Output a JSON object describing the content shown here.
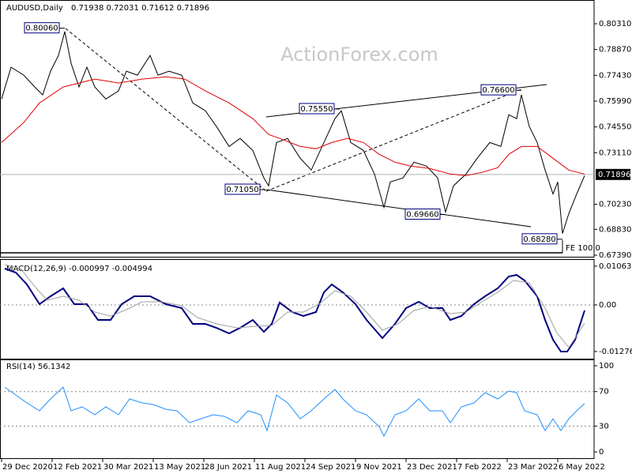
{
  "chart_data": [
    {
      "type": "line",
      "title": "AUDUSD,Daily",
      "subtitle": "0.71938 0.72031 0.71612 0.71896",
      "watermark": "ActionForex.com",
      "fe_label": "FE 100.0",
      "xlim": [
        -1,
        375
      ],
      "ylim": [
        0.6739,
        0.81635
      ],
      "yticks": [
        {
          "value": 0.8031,
          "label": "0.80310"
        },
        {
          "value": 0.7887,
          "label": "0.78870"
        },
        {
          "value": 0.7743,
          "label": "0.77430"
        },
        {
          "value": 0.7599,
          "label": "0.75990"
        },
        {
          "value": 0.7455,
          "label": "0.74550"
        },
        {
          "value": 0.7311,
          "label": "0.73110"
        },
        {
          "value": 0.7023,
          "label": "0.70230"
        },
        {
          "value": 0.6883,
          "label": "0.68830"
        },
        {
          "value": 0.6739,
          "label": "0.67390"
        }
      ],
      "last_price": {
        "value": 0.71896,
        "label": "0.71896"
      },
      "annotations": [
        {
          "x": 40,
          "value": 0.8006,
          "label": "0.80060"
        },
        {
          "x": 214,
          "value": 0.7555,
          "label": "0.75550"
        },
        {
          "x": 329,
          "value": 0.766,
          "label": "0.76600"
        },
        {
          "x": 167,
          "value": 0.7105,
          "label": "0.71050"
        },
        {
          "x": 281,
          "value": 0.6966,
          "label": "0.69660"
        },
        {
          "x": 355,
          "value": 0.6828,
          "label": "0.68280"
        }
      ],
      "series": [
        {
          "color": "#000000",
          "x": [
            0,
            6,
            14,
            21,
            26,
            31,
            36,
            40,
            44,
            49,
            54,
            59,
            66,
            74,
            79,
            86,
            94,
            99,
            106,
            114,
            121,
            129,
            136,
            144,
            151,
            159,
            166,
            169,
            174,
            181,
            189,
            196,
            204,
            211,
            215,
            221,
            229,
            236,
            242,
            246,
            254,
            261,
            269,
            276,
            281,
            286,
            294,
            301,
            309,
            316,
            321,
            326,
            329,
            334,
            339,
            344,
            349,
            352,
            355,
            359,
            364,
            369
          ],
          "values": [
            0.7611,
            0.7788,
            0.7744,
            0.7678,
            0.7634,
            0.7766,
            0.7854,
            0.7987,
            0.781,
            0.7678,
            0.7788,
            0.7678,
            0.7611,
            0.7656,
            0.7766,
            0.7744,
            0.7854,
            0.7744,
            0.7766,
            0.7744,
            0.7589,
            0.7545,
            0.7457,
            0.7346,
            0.7391,
            0.7324,
            0.717,
            0.7126,
            0.7368,
            0.7391,
            0.728,
            0.7214,
            0.7368,
            0.7501,
            0.7545,
            0.7368,
            0.7324,
            0.7192,
            0.7006,
            0.7148,
            0.717,
            0.7258,
            0.7236,
            0.717,
            0.698,
            0.7126,
            0.7192,
            0.728,
            0.7368,
            0.7346,
            0.7523,
            0.7501,
            0.7634,
            0.7457,
            0.7368,
            0.7214,
            0.7081,
            0.7148,
            0.686,
            0.6971,
            0.7081,
            0.7183
          ]
        },
        {
          "color": "#e00000",
          "x": [
            0,
            14,
            24,
            39,
            49,
            59,
            74,
            89,
            104,
            116,
            129,
            144,
            159,
            169,
            176,
            189,
            199,
            209,
            219,
            229,
            239,
            249,
            259,
            271,
            284,
            294,
            304,
            314,
            321,
            329,
            339,
            349,
            359,
            369
          ],
          "values": [
            0.7368,
            0.7479,
            0.7589,
            0.7678,
            0.77,
            0.7722,
            0.77,
            0.7722,
            0.7735,
            0.7722,
            0.7656,
            0.7589,
            0.7501,
            0.7413,
            0.7391,
            0.7346,
            0.7333,
            0.7368,
            0.7391,
            0.7368,
            0.7302,
            0.7258,
            0.7236,
            0.7223,
            0.7192,
            0.7183,
            0.7201,
            0.7227,
            0.7302,
            0.7346,
            0.7346,
            0.728,
            0.7214,
            0.7192
          ]
        }
      ]
    },
    {
      "type": "line",
      "title": "MACD(12,26,9) -0.000997 -0.004994",
      "xlim": [
        -1,
        375
      ],
      "ylim": [
        -0.0143,
        0.01213
      ],
      "yticks": [
        0.010631,
        {
          "value": 0,
          "label": "0.00"
        },
        -0.012767
      ],
      "levels": [
        0
      ],
      "series": [
        {
          "color": "#000080",
          "x": [
            2,
            9,
            16,
            24,
            31,
            39,
            46,
            54,
            61,
            69,
            76,
            84,
            94,
            104,
            114,
            121,
            129,
            136,
            144,
            151,
            159,
            166,
            171,
            176,
            184,
            191,
            199,
            204,
            209,
            216,
            224,
            231,
            241,
            249,
            256,
            264,
            271,
            279,
            284,
            291,
            299,
            306,
            314,
            321,
            326,
            331,
            339,
            344,
            349,
            354,
            358,
            363,
            369
          ],
          "values": [
            0.00997,
            0.00888,
            0.00563,
            0.00022,
            0.00238,
            0.00455,
            0.00022,
            0.00022,
            -0.00412,
            -0.00412,
            0.00022,
            0.00238,
            0.00238,
            0.00022,
            -0.00087,
            -0.0052,
            -0.0052,
            -0.00628,
            -0.0078,
            -0.00628,
            -0.00412,
            -0.00737,
            -0.0052,
            0.00065,
            -0.00195,
            -0.00303,
            -0.00195,
            0.00347,
            0.00563,
            0.00347,
            0.00022,
            -0.00412,
            -0.0091,
            -0.0052,
            -0.00087,
            0.00087,
            -0.00087,
            -0.00087,
            -0.00412,
            -0.00303,
            0.00022,
            0.00238,
            0.00455,
            0.0078,
            0.00823,
            0.00672,
            0.00238,
            -0.00412,
            -0.00953,
            -0.01278,
            -0.01278,
            -0.00953,
            -0.00152
          ]
        },
        {
          "color": "#a0a0a0",
          "x": [
            2,
            12,
            22,
            29,
            39,
            49,
            59,
            69,
            79,
            89,
            101,
            114,
            124,
            136,
            149,
            161,
            171,
            181,
            191,
            201,
            211,
            221,
            231,
            241,
            251,
            261,
            271,
            284,
            294,
            304,
            314,
            324,
            334,
            344,
            351,
            359,
            369
          ],
          "values": [
            0.01105,
            0.00997,
            0.00455,
            0.0013,
            0.00238,
            0.0013,
            -0.00195,
            -0.00303,
            -0.0013,
            0.00087,
            0.00087,
            -0.00022,
            -0.00347,
            -0.0052,
            -0.00628,
            -0.00585,
            -0.00563,
            -0.00195,
            -0.00195,
            0.00022,
            0.0039,
            0.00238,
            -0.00195,
            -0.00693,
            -0.0052,
            -0.00152,
            -0.00043,
            -0.00238,
            -0.00195,
            0.00087,
            0.00347,
            0.00672,
            0.00607,
            -0.00087,
            -0.00737,
            -0.0117,
            -0.005
          ]
        }
      ]
    },
    {
      "type": "line",
      "title": "RSI(14) 56.1342",
      "xlim": [
        -1,
        375
      ],
      "ylim": [
        -7.3,
        106.4
      ],
      "yticks": [
        0,
        30,
        70,
        100
      ],
      "levels": [
        30,
        70
      ],
      "xticks": [
        {
          "value": 0,
          "label": "29 Dec 2020"
        },
        {
          "value": 32,
          "label": "12 Feb 2021"
        },
        {
          "value": 64,
          "label": "30 Mar 2021"
        },
        {
          "value": 96,
          "label": "13 May 2021"
        },
        {
          "value": 128,
          "label": "28 Jun 2021"
        },
        {
          "value": 160,
          "label": "11 Aug 2021"
        },
        {
          "value": 192,
          "label": "24 Sep 2021"
        },
        {
          "value": 224,
          "label": "9 Nov 2021"
        },
        {
          "value": 256,
          "label": "23 Dec 2021"
        },
        {
          "value": 288,
          "label": "7 Feb 2022"
        },
        {
          "value": 320,
          "label": "23 Mar 2022"
        },
        {
          "value": 352,
          "label": "6 May 2022"
        }
      ],
      "series": [
        {
          "color": "#1e90ff",
          "x": [
            2,
            9,
            16,
            24,
            31,
            39,
            44,
            51,
            59,
            66,
            74,
            81,
            89,
            96,
            104,
            111,
            119,
            126,
            134,
            141,
            149,
            156,
            164,
            168,
            174,
            181,
            189,
            196,
            204,
            211,
            216,
            224,
            231,
            239,
            242,
            249,
            256,
            264,
            271,
            279,
            284,
            291,
            299,
            306,
            314,
            321,
            326,
            331,
            339,
            344,
            349,
            354,
            359,
            364,
            369
          ],
          "values": [
            75.2,
            66.1,
            56.9,
            47.7,
            61.5,
            75.2,
            47.7,
            52.3,
            43.1,
            52.3,
            43.1,
            61.5,
            56.9,
            55.0,
            49.5,
            47.7,
            33.9,
            38.5,
            43.1,
            41.3,
            33.9,
            47.7,
            43.1,
            24.8,
            66.1,
            56.9,
            38.5,
            47.7,
            61.5,
            72.5,
            61.5,
            47.7,
            43.1,
            29.4,
            18.3,
            43.1,
            47.7,
            61.5,
            47.7,
            47.7,
            33.9,
            52.3,
            56.9,
            68.8,
            61.5,
            70.6,
            68.8,
            47.7,
            43.1,
            24.8,
            38.5,
            24.8,
            38.5,
            47.7,
            56.1342
          ]
        }
      ]
    }
  ]
}
